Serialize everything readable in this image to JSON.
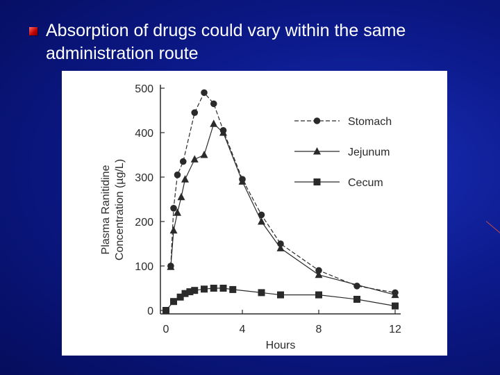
{
  "slide": {
    "title": "Absorption of drugs could vary within the same administration route"
  },
  "colors": {
    "background": "#0c1a8c",
    "title_text": "#ffffff",
    "bullet": "#c00000",
    "chart_ink": "#2a2a2a"
  },
  "chart_data": {
    "type": "line",
    "xlabel": "Hours",
    "ylabel_lines": [
      "Plasma Ranitidine",
      "Concentration (µg/L)"
    ],
    "xlim": [
      0,
      12
    ],
    "ylim": [
      0,
      500
    ],
    "x_ticks": [
      0,
      4,
      8,
      12
    ],
    "y_ticks": [
      0,
      100,
      200,
      300,
      400,
      500
    ],
    "grid": false,
    "legend_position": "top-right",
    "series": [
      {
        "name": "Stomach",
        "marker": "circle",
        "dash": "6,3",
        "x": [
          0.25,
          0.4,
          0.6,
          0.9,
          1.5,
          2.0,
          2.5,
          3.0,
          4.0,
          5.0,
          6.0,
          8.0,
          10.0,
          12.0
        ],
        "y": [
          100,
          230,
          305,
          335,
          445,
          490,
          465,
          405,
          295,
          215,
          150,
          90,
          55,
          40
        ]
      },
      {
        "name": "Jejunum",
        "marker": "triangle",
        "dash": "",
        "x": [
          0.25,
          0.4,
          0.6,
          0.8,
          1.0,
          1.5,
          2.0,
          2.5,
          3.0,
          4.0,
          5.0,
          6.0,
          8.0,
          12.0
        ],
        "y": [
          98,
          180,
          220,
          255,
          295,
          340,
          350,
          420,
          400,
          290,
          200,
          140,
          80,
          35
        ]
      },
      {
        "name": "Cecum",
        "marker": "square",
        "dash": "",
        "x": [
          0,
          0.4,
          0.75,
          1.0,
          1.25,
          1.5,
          2.0,
          2.5,
          3.0,
          3.5,
          5.0,
          6.0,
          8.0,
          10.0,
          12.0
        ],
        "y": [
          0,
          20,
          30,
          38,
          42,
          45,
          48,
          50,
          50,
          47,
          40,
          35,
          35,
          25,
          10
        ]
      }
    ]
  }
}
